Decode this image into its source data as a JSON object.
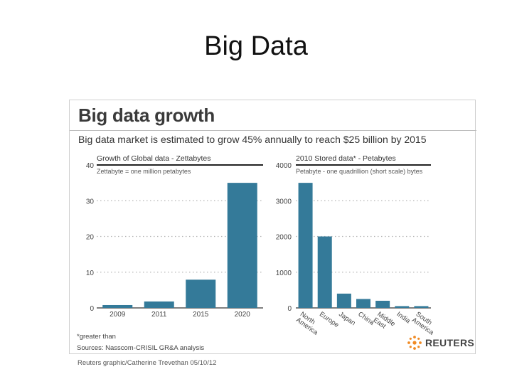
{
  "slide": {
    "title": "Big Data"
  },
  "graphic": {
    "title": "Big data growth",
    "subtitle": "Big data market is estimated to grow 45% annually to reach $25 billion by 2015",
    "footnote_1": "*greater than",
    "footnote_2": "Sources: Nasscom-CRISIL GR&A analysis",
    "logo_text": "REUTERS",
    "credit": "Reuters graphic/Catherine Trevethan   05/10/12"
  },
  "colors": {
    "bar": "#347a99",
    "grid": "#b5b5b5",
    "axis": "#333333"
  },
  "chart_data": [
    {
      "type": "bar",
      "title": "Growth of Global data - Zettabytes",
      "note": "Zettabyte = one million petabytes",
      "categories": [
        "2009",
        "2011",
        "2015",
        "2020"
      ],
      "values": [
        0.8,
        1.8,
        7.9,
        35
      ],
      "ylim": [
        0,
        40
      ],
      "yticks": [
        "0",
        "10",
        "20",
        "30",
        "40"
      ],
      "grid": true
    },
    {
      "type": "bar",
      "title": "2010 Stored data* - Petabytes",
      "note": "Petabyte - one quadrillion (short scale) bytes",
      "categories": [
        "North America",
        "Europe",
        "Japan",
        "China",
        "Middle East",
        "India",
        "South America"
      ],
      "category_lines": [
        [
          "North",
          "America"
        ],
        [
          "Europe"
        ],
        [
          "Japan"
        ],
        [
          "China"
        ],
        [
          "Middle",
          "East"
        ],
        [
          "India"
        ],
        [
          "South",
          "America"
        ]
      ],
      "values": [
        3500,
        2000,
        400,
        250,
        200,
        50,
        50
      ],
      "ylim": [
        0,
        4000
      ],
      "yticks": [
        "0",
        "1000",
        "2000",
        "3000",
        "4000"
      ],
      "grid": true
    }
  ]
}
